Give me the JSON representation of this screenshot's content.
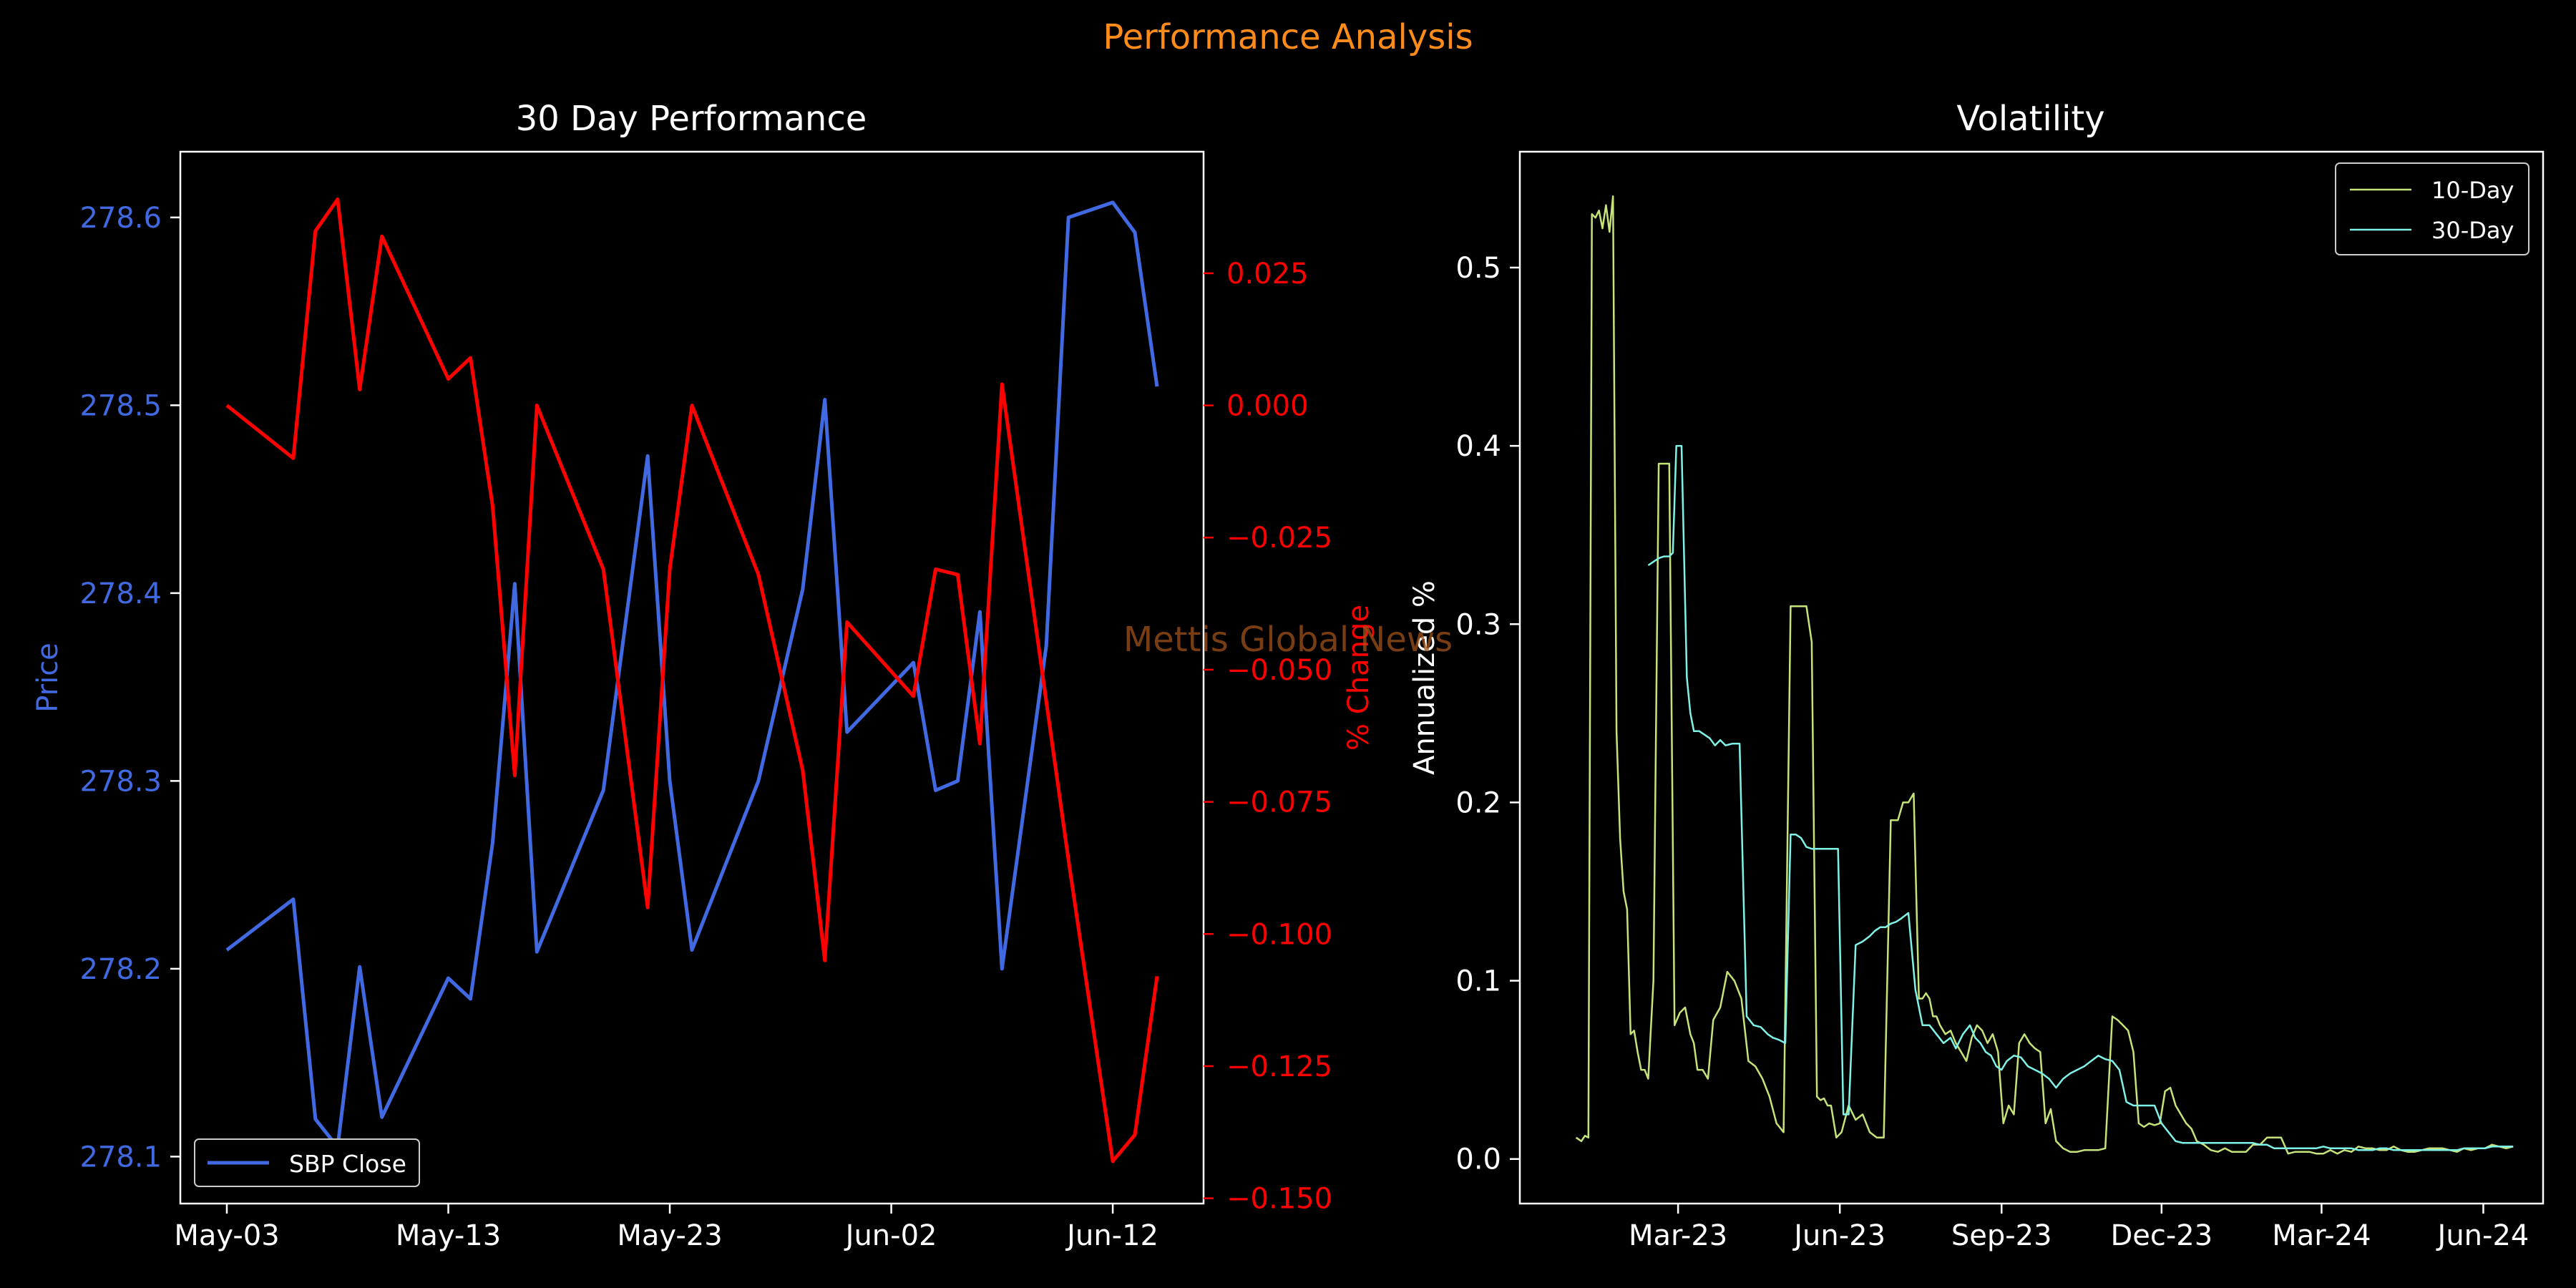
{
  "figure": {
    "suptitle": "Performance Analysis",
    "watermark": "Mettis Global News",
    "colors": {
      "background": "#000000",
      "suptitle": "#ff8c1a",
      "price": "#4169e1",
      "pct": "#ff0000",
      "axes": "#ffffff",
      "watermark": "#a0521a",
      "vol10": "#c6e37a",
      "vol30": "#7ff2e8"
    }
  },
  "chart_data": [
    {
      "type": "line",
      "title": "30 Day Performance",
      "xlabel": "",
      "ylabel": "Price",
      "y2label": "% Change",
      "x_ticks": [
        "May-03",
        "May-13",
        "May-23",
        "Jun-02",
        "Jun-12"
      ],
      "x_tick_days": [
        0,
        10,
        20,
        30,
        40
      ],
      "x_day0": "2024-05-03",
      "xlim": [
        -2.1,
        44.1
      ],
      "ylim": [
        278.075,
        278.635
      ],
      "y_ticks": [
        "278.1",
        "278.2",
        "278.3",
        "278.4",
        "278.5",
        "278.6"
      ],
      "y2lim": [
        -0.151,
        0.048
      ],
      "y2_ticks": [
        "0.025",
        "0.000",
        "−0.025",
        "−0.050",
        "−0.075",
        "−0.100",
        "−0.125",
        "−0.150"
      ],
      "legend": {
        "position": "lower-left",
        "entries": [
          "SBP Close"
        ]
      },
      "series": [
        {
          "name": "SBP Close",
          "axis": "left",
          "x": [
            0,
            3,
            4,
            5,
            6,
            7,
            10,
            11,
            12,
            13,
            14,
            17,
            19,
            20,
            21,
            24,
            26,
            27,
            28,
            31,
            32,
            33,
            34,
            35,
            37,
            38,
            40,
            41,
            42
          ],
          "values": [
            278.21,
            278.237,
            278.12,
            278.105,
            278.201,
            278.121,
            278.195,
            278.184,
            278.267,
            278.405,
            278.209,
            278.295,
            278.473,
            278.3,
            278.21,
            278.3,
            278.402,
            278.503,
            278.326,
            278.363,
            278.295,
            278.3,
            278.39,
            278.2,
            278.372,
            278.6,
            278.608,
            278.592,
            278.51
          ]
        },
        {
          "name": "% Change",
          "axis": "right",
          "x": [
            0,
            3,
            4,
            5,
            6,
            7,
            10,
            11,
            12,
            13,
            14,
            17,
            19,
            20,
            21,
            24,
            26,
            27,
            28,
            31,
            32,
            33,
            34,
            35,
            37,
            38,
            40,
            41,
            42
          ],
          "values": [
            0.0,
            -0.01,
            0.033,
            0.039,
            0.003,
            0.032,
            0.005,
            0.009,
            -0.019,
            -0.07,
            0.0,
            -0.031,
            -0.095,
            -0.031,
            0.0,
            -0.032,
            -0.069,
            -0.105,
            -0.041,
            -0.055,
            -0.031,
            -0.032,
            -0.064,
            0.004,
            -0.056,
            -0.086,
            -0.143,
            -0.138,
            -0.108
          ]
        }
      ]
    },
    {
      "type": "line",
      "title": "Volatility",
      "xlabel": "",
      "ylabel": "Annualized %",
      "x_ticks": [
        "Mar-23",
        "Jun-23",
        "Sep-23",
        "Dec-23",
        "Mar-24",
        "Jun-24"
      ],
      "x_tick_dates": [
        "2023-03-01",
        "2023-06-01",
        "2023-09-01",
        "2023-12-01",
        "2024-03-01",
        "2024-06-01"
      ],
      "xlim": [
        "2022-12-01",
        "2024-07-05"
      ],
      "ylim": [
        -0.025,
        0.565
      ],
      "y_ticks": [
        "0.0",
        "0.1",
        "0.2",
        "0.3",
        "0.4",
        "0.5"
      ],
      "legend": {
        "position": "top-right",
        "entries": [
          "10-Day",
          "30-Day"
        ]
      },
      "series": [
        {
          "name": "10-Day",
          "x": [
            "2023-01-02",
            "2023-01-05",
            "2023-01-07",
            "2023-01-09",
            "2023-01-11",
            "2023-01-13",
            "2023-01-15",
            "2023-01-17",
            "2023-01-19",
            "2023-01-21",
            "2023-01-23",
            "2023-01-25",
            "2023-01-27",
            "2023-01-29",
            "2023-01-31",
            "2023-02-02",
            "2023-02-04",
            "2023-02-06",
            "2023-02-08",
            "2023-02-10",
            "2023-02-12",
            "2023-02-15",
            "2023-02-18",
            "2023-02-21",
            "2023-02-24",
            "2023-02-27",
            "2023-03-02",
            "2023-03-05",
            "2023-03-08",
            "2023-03-10",
            "2023-03-12",
            "2023-03-15",
            "2023-03-18",
            "2023-03-21",
            "2023-03-25",
            "2023-03-29",
            "2023-04-02",
            "2023-04-06",
            "2023-04-10",
            "2023-04-14",
            "2023-04-18",
            "2023-04-22",
            "2023-04-26",
            "2023-04-30",
            "2023-05-04",
            "2023-05-07",
            "2023-05-10",
            "2023-05-13",
            "2023-05-16",
            "2023-05-19",
            "2023-05-21",
            "2023-05-23",
            "2023-05-25",
            "2023-05-27",
            "2023-05-30",
            "2023-06-02",
            "2023-06-06",
            "2023-06-10",
            "2023-06-14",
            "2023-06-18",
            "2023-06-22",
            "2023-06-26",
            "2023-06-30",
            "2023-07-04",
            "2023-07-07",
            "2023-07-10",
            "2023-07-13",
            "2023-07-16",
            "2023-07-18",
            "2023-07-20",
            "2023-07-22",
            "2023-07-24",
            "2023-07-26",
            "2023-07-28",
            "2023-07-31",
            "2023-08-03",
            "2023-08-06",
            "2023-08-09",
            "2023-08-12",
            "2023-08-15",
            "2023-08-18",
            "2023-08-21",
            "2023-08-24",
            "2023-08-27",
            "2023-08-30",
            "2023-09-02",
            "2023-09-05",
            "2023-09-08",
            "2023-09-11",
            "2023-09-14",
            "2023-09-17",
            "2023-09-20",
            "2023-09-23",
            "2023-09-26",
            "2023-09-29",
            "2023-10-02",
            "2023-10-06",
            "2023-10-10",
            "2023-10-14",
            "2023-10-18",
            "2023-10-22",
            "2023-10-26",
            "2023-10-30",
            "2023-11-03",
            "2023-11-06",
            "2023-11-09",
            "2023-11-12",
            "2023-11-15",
            "2023-11-18",
            "2023-11-21",
            "2023-11-24",
            "2023-11-27",
            "2023-11-30",
            "2023-12-03",
            "2023-12-06",
            "2023-12-09",
            "2023-12-12",
            "2023-12-15",
            "2023-12-18",
            "2023-12-21",
            "2023-12-25",
            "2023-12-29",
            "2024-01-02",
            "2024-01-06",
            "2024-01-10",
            "2024-01-14",
            "2024-01-18",
            "2024-01-22",
            "2024-01-26",
            "2024-01-30",
            "2024-02-03",
            "2024-02-07",
            "2024-02-11",
            "2024-02-15",
            "2024-02-19",
            "2024-02-23",
            "2024-02-27",
            "2024-03-02",
            "2024-03-06",
            "2024-03-10",
            "2024-03-14",
            "2024-03-18",
            "2024-03-22",
            "2024-03-26",
            "2024-03-30",
            "2024-04-03",
            "2024-04-07",
            "2024-04-11",
            "2024-04-15",
            "2024-04-19",
            "2024-04-23",
            "2024-04-27",
            "2024-05-01",
            "2024-05-05",
            "2024-05-09",
            "2024-05-13",
            "2024-05-17",
            "2024-05-21",
            "2024-05-25",
            "2024-05-29",
            "2024-06-02",
            "2024-06-06",
            "2024-06-10",
            "2024-06-14",
            "2024-06-18"
          ],
          "values": [
            0.012,
            0.01,
            0.013,
            0.012,
            0.53,
            0.528,
            0.532,
            0.522,
            0.535,
            0.52,
            0.54,
            0.24,
            0.18,
            0.15,
            0.14,
            0.07,
            0.072,
            0.06,
            0.05,
            0.05,
            0.045,
            0.1,
            0.39,
            0.39,
            0.39,
            0.075,
            0.082,
            0.085,
            0.07,
            0.065,
            0.05,
            0.05,
            0.045,
            0.078,
            0.085,
            0.105,
            0.1,
            0.09,
            0.055,
            0.052,
            0.045,
            0.035,
            0.02,
            0.015,
            0.31,
            0.31,
            0.31,
            0.31,
            0.29,
            0.035,
            0.033,
            0.034,
            0.03,
            0.03,
            0.012,
            0.015,
            0.03,
            0.022,
            0.025,
            0.015,
            0.012,
            0.012,
            0.19,
            0.19,
            0.2,
            0.2,
            0.205,
            0.09,
            0.09,
            0.093,
            0.09,
            0.08,
            0.08,
            0.075,
            0.07,
            0.072,
            0.065,
            0.06,
            0.055,
            0.068,
            0.075,
            0.072,
            0.065,
            0.07,
            0.06,
            0.02,
            0.03,
            0.025,
            0.065,
            0.07,
            0.065,
            0.062,
            0.06,
            0.02,
            0.028,
            0.01,
            0.006,
            0.004,
            0.004,
            0.005,
            0.005,
            0.005,
            0.006,
            0.08,
            0.078,
            0.075,
            0.072,
            0.06,
            0.02,
            0.018,
            0.02,
            0.019,
            0.02,
            0.038,
            0.04,
            0.03,
            0.025,
            0.02,
            0.017,
            0.01,
            0.008,
            0.005,
            0.004,
            0.006,
            0.004,
            0.004,
            0.004,
            0.008,
            0.008,
            0.012,
            0.012,
            0.012,
            0.003,
            0.004,
            0.004,
            0.004,
            0.003,
            0.003,
            0.005,
            0.003,
            0.005,
            0.004,
            0.007,
            0.006,
            0.006,
            0.005,
            0.005,
            0.007,
            0.005,
            0.004,
            0.004,
            0.005,
            0.006,
            0.006,
            0.006,
            0.005,
            0.004,
            0.006,
            0.005,
            0.006,
            0.006,
            0.008,
            0.007,
            0.006,
            0.007
          ]
        },
        {
          "name": "30-Day",
          "x": [
            "2023-02-12",
            "2023-02-15",
            "2023-02-18",
            "2023-02-21",
            "2023-02-24",
            "2023-02-26",
            "2023-02-28",
            "2023-03-03",
            "2023-03-06",
            "2023-03-08",
            "2023-03-10",
            "2023-03-13",
            "2023-03-16",
            "2023-03-19",
            "2023-03-22",
            "2023-03-25",
            "2023-03-28",
            "2023-04-01",
            "2023-04-05",
            "2023-04-09",
            "2023-04-13",
            "2023-04-17",
            "2023-04-21",
            "2023-04-24",
            "2023-04-27",
            "2023-05-01",
            "2023-05-04",
            "2023-05-07",
            "2023-05-10",
            "2023-05-13",
            "2023-05-16",
            "2023-05-19",
            "2023-05-22",
            "2023-05-25",
            "2023-05-28",
            "2023-05-31",
            "2023-06-03",
            "2023-06-06",
            "2023-06-10",
            "2023-06-14",
            "2023-06-18",
            "2023-06-21",
            "2023-06-24",
            "2023-06-27",
            "2023-06-30",
            "2023-07-03",
            "2023-07-06",
            "2023-07-10",
            "2023-07-14",
            "2023-07-18",
            "2023-07-22",
            "2023-07-26",
            "2023-07-30",
            "2023-08-03",
            "2023-08-06",
            "2023-08-10",
            "2023-08-14",
            "2023-08-17",
            "2023-08-20",
            "2023-08-23",
            "2023-08-26",
            "2023-08-29",
            "2023-09-01",
            "2023-09-04",
            "2023-09-08",
            "2023-09-12",
            "2023-09-16",
            "2023-09-20",
            "2023-09-24",
            "2023-09-28",
            "2023-10-02",
            "2023-10-06",
            "2023-10-10",
            "2023-10-14",
            "2023-10-18",
            "2023-10-22",
            "2023-10-26",
            "2023-10-30",
            "2023-11-03",
            "2023-11-07",
            "2023-11-11",
            "2023-11-15",
            "2023-11-19",
            "2023-11-23",
            "2023-11-27",
            "2023-12-01",
            "2023-12-05",
            "2023-12-09",
            "2023-12-13",
            "2023-12-17",
            "2023-12-21",
            "2023-12-25",
            "2023-12-29",
            "2024-01-02",
            "2024-01-06",
            "2024-01-10",
            "2024-01-14",
            "2024-01-18",
            "2024-01-22",
            "2024-01-26",
            "2024-01-30",
            "2024-02-03",
            "2024-02-07",
            "2024-02-11",
            "2024-02-15",
            "2024-02-19",
            "2024-02-23",
            "2024-02-27",
            "2024-03-02",
            "2024-03-06",
            "2024-03-10",
            "2024-03-14",
            "2024-03-18",
            "2024-03-22",
            "2024-03-26",
            "2024-03-30",
            "2024-04-03",
            "2024-04-07",
            "2024-04-11",
            "2024-04-15",
            "2024-04-19",
            "2024-04-23",
            "2024-04-27",
            "2024-05-01",
            "2024-05-05",
            "2024-05-09",
            "2024-05-13",
            "2024-05-17",
            "2024-05-21",
            "2024-05-25",
            "2024-05-29",
            "2024-06-02",
            "2024-06-06",
            "2024-06-10",
            "2024-06-14",
            "2024-06-18"
          ],
          "values": [
            0.333,
            0.335,
            0.337,
            0.338,
            0.338,
            0.34,
            0.4,
            0.4,
            0.27,
            0.25,
            0.24,
            0.24,
            0.238,
            0.236,
            0.232,
            0.235,
            0.232,
            0.233,
            0.233,
            0.08,
            0.075,
            0.074,
            0.07,
            0.068,
            0.067,
            0.065,
            0.182,
            0.182,
            0.18,
            0.175,
            0.174,
            0.174,
            0.174,
            0.174,
            0.174,
            0.174,
            0.025,
            0.025,
            0.12,
            0.122,
            0.125,
            0.128,
            0.13,
            0.13,
            0.132,
            0.133,
            0.135,
            0.138,
            0.095,
            0.075,
            0.075,
            0.07,
            0.065,
            0.068,
            0.062,
            0.07,
            0.075,
            0.068,
            0.065,
            0.06,
            0.058,
            0.052,
            0.05,
            0.055,
            0.058,
            0.057,
            0.052,
            0.05,
            0.048,
            0.045,
            0.04,
            0.045,
            0.048,
            0.05,
            0.052,
            0.055,
            0.058,
            0.056,
            0.055,
            0.05,
            0.032,
            0.03,
            0.03,
            0.03,
            0.03,
            0.02,
            0.015,
            0.01,
            0.009,
            0.009,
            0.009,
            0.009,
            0.009,
            0.009,
            0.009,
            0.009,
            0.009,
            0.009,
            0.009,
            0.008,
            0.008,
            0.006,
            0.006,
            0.006,
            0.006,
            0.006,
            0.006,
            0.006,
            0.007,
            0.006,
            0.006,
            0.006,
            0.006,
            0.005,
            0.005,
            0.005,
            0.006,
            0.006,
            0.005,
            0.005,
            0.005,
            0.005,
            0.005,
            0.005,
            0.005,
            0.005,
            0.005,
            0.005,
            0.006,
            0.006,
            0.006,
            0.006,
            0.007,
            0.007,
            0.007,
            0.007
          ]
        }
      ]
    }
  ]
}
